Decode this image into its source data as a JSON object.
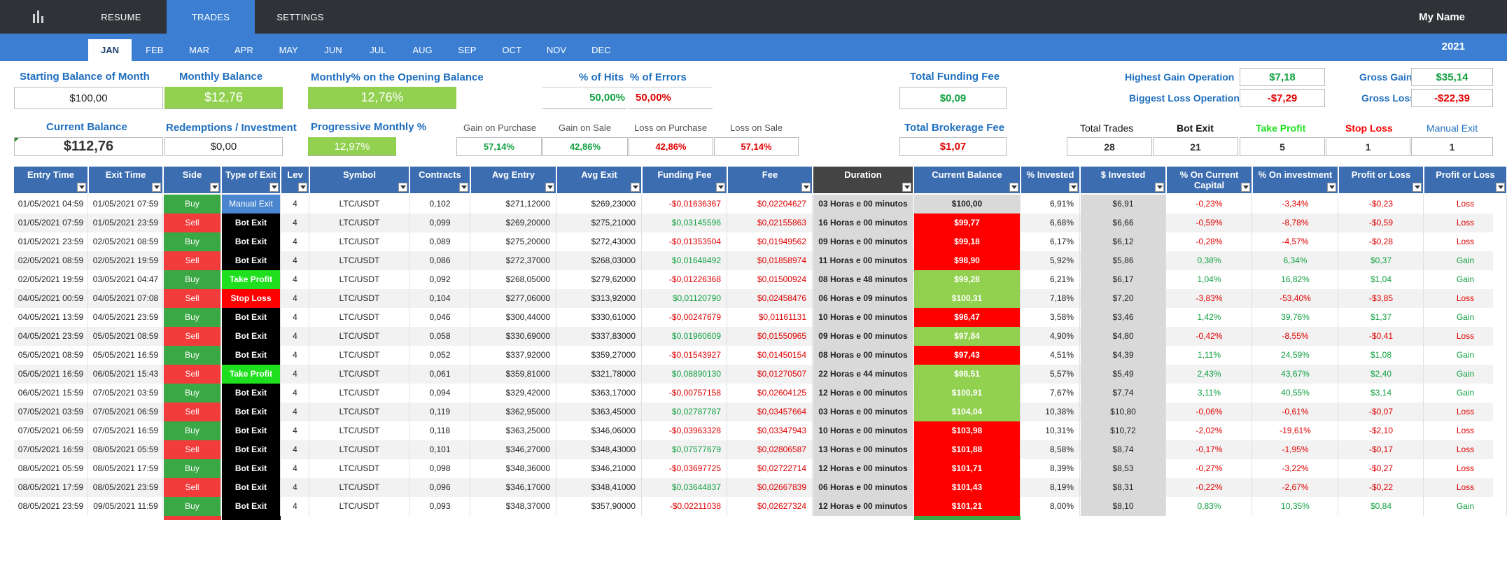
{
  "nav": {
    "resume": "RESUME",
    "trades": "TRADES",
    "settings": "SETTINGS",
    "user": "My Name"
  },
  "months": [
    "JAN",
    "FEB",
    "MAR",
    "APR",
    "MAY",
    "JUN",
    "JUL",
    "AUG",
    "SEP",
    "OCT",
    "NOV",
    "DEC"
  ],
  "active_month": "JAN",
  "year": "2021",
  "summary": {
    "starting_balance_label": "Starting Balance of Month",
    "starting_balance": "$100,00",
    "monthly_balance_label": "Monthly Balance",
    "monthly_balance": "$12,76",
    "monthly_pct_label": "Monthly% on the Opening Balance",
    "monthly_pct": "12,76%",
    "hits_label": "% of Hits",
    "hits": "50,00%",
    "errors_label": "% of Errors",
    "errors": "50,00%",
    "funding_label": "Total Funding Fee",
    "funding": "$0,09",
    "highest_gain_label": "Highest Gain Operation",
    "highest_gain": "$7,18",
    "biggest_loss_label": "Biggest Loss Operation",
    "biggest_loss": "-$7,29",
    "gross_gain_label": "Gross Gain",
    "gross_gain": "$35,14",
    "gross_loss_label": "Gross Loss",
    "gross_loss": "-$22,39",
    "current_balance_label": "Current Balance",
    "current_balance": "$112,76",
    "redemptions_label": "Redemptions / Investment",
    "redemptions": "$0,00",
    "progressive_label": "Progressive Monthly %",
    "progressive": "12,97%",
    "gain_purchase_label": "Gain on Purchase",
    "gain_purchase": "57,14%",
    "gain_sale_label": "Gain on Sale",
    "gain_sale": "42,86%",
    "loss_purchase_label": "Loss on Purchase",
    "loss_purchase": "42,86%",
    "loss_sale_label": "Loss on Sale",
    "loss_sale": "57,14%",
    "brokerage_label": "Total Brokerage Fee",
    "brokerage": "$1,07",
    "total_trades_label": "Total Trades",
    "total_trades": "28",
    "bot_exit_label": "Bot Exit",
    "bot_exit": "21",
    "take_profit_label": "Take Profit",
    "take_profit": "5",
    "stop_loss_label": "Stop Loss",
    "stop_loss": "1",
    "manual_exit_label": "Manual Exit",
    "manual_exit": "1"
  },
  "table": {
    "headers": [
      "Entry Time",
      "Exit Time",
      "Side",
      "Type of Exit",
      "Lev",
      "Symbol",
      "Contracts",
      "Avg Entry",
      "Avg Exit",
      "Funding Fee",
      "Fee",
      "Duration",
      "Current Balance",
      "% Invested",
      "$ Invested",
      "% On Current Capital",
      "% On investment",
      "Profit or Loss",
      "Profit or Loss"
    ],
    "rows": [
      [
        "01/05/2021 04:59",
        "01/05/2021 07:59",
        "Buy",
        "Manual Exit",
        "4",
        "LTC/USDT",
        "0,102",
        "$271,12000",
        "$269,23000",
        "-$0,01636367",
        "$0,02204627",
        "03 Horas e 00 minutos",
        "$100,00",
        "6,91%",
        "$6,91",
        "-0,23%",
        "-3,34%",
        "-$0,23",
        "Loss"
      ],
      [
        "01/05/2021 07:59",
        "01/05/2021 23:59",
        "Sell",
        "Bot Exit",
        "4",
        "LTC/USDT",
        "0,099",
        "$269,20000",
        "$275,21000",
        "$0,03145596",
        "$0,02155863",
        "16 Horas e 00 minutos",
        "$99,77",
        "6,68%",
        "$6,66",
        "-0,59%",
        "-8,78%",
        "-$0,59",
        "Loss"
      ],
      [
        "01/05/2021 23:59",
        "02/05/2021 08:59",
        "Buy",
        "Bot Exit",
        "4",
        "LTC/USDT",
        "0,089",
        "$275,20000",
        "$272,43000",
        "-$0,01353504",
        "$0,01949562",
        "09 Horas e 00 minutos",
        "$99,18",
        "6,17%",
        "$6,12",
        "-0,28%",
        "-4,57%",
        "-$0,28",
        "Loss"
      ],
      [
        "02/05/2021 08:59",
        "02/05/2021 19:59",
        "Sell",
        "Bot Exit",
        "4",
        "LTC/USDT",
        "0,086",
        "$272,37000",
        "$268,03000",
        "$0,01648492",
        "$0,01858974",
        "11 Horas e 00 minutos",
        "$98,90",
        "5,92%",
        "$5,86",
        "0,38%",
        "6,34%",
        "$0,37",
        "Gain"
      ],
      [
        "02/05/2021 19:59",
        "03/05/2021 04:47",
        "Buy",
        "Take Profit",
        "4",
        "LTC/USDT",
        "0,092",
        "$268,05000",
        "$279,62000",
        "-$0,01226368",
        "$0,01500924",
        "08 Horas e 48 minutos",
        "$99,28",
        "6,21%",
        "$6,17",
        "1,04%",
        "16,82%",
        "$1,04",
        "Gain"
      ],
      [
        "04/05/2021 00:59",
        "04/05/2021 07:08",
        "Sell",
        "Stop Loss",
        "4",
        "LTC/USDT",
        "0,104",
        "$277,06000",
        "$313,92000",
        "$0,01120790",
        "$0,02458476",
        "06 Horas e 09 minutos",
        "$100,31",
        "7,18%",
        "$7,20",
        "-3,83%",
        "-53,40%",
        "-$3,85",
        "Loss"
      ],
      [
        "04/05/2021 13:59",
        "04/05/2021 23:59",
        "Buy",
        "Bot Exit",
        "4",
        "LTC/USDT",
        "0,046",
        "$300,44000",
        "$330,61000",
        "-$0,00247679",
        "$0,01161131",
        "10 Horas e 00 minutos",
        "$96,47",
        "3,58%",
        "$3,46",
        "1,42%",
        "39,76%",
        "$1,37",
        "Gain"
      ],
      [
        "04/05/2021 23:59",
        "05/05/2021 08:59",
        "Sell",
        "Bot Exit",
        "4",
        "LTC/USDT",
        "0,058",
        "$330,69000",
        "$337,83000",
        "$0,01960609",
        "$0,01550965",
        "09 Horas e 00 minutos",
        "$97,84",
        "4,90%",
        "$4,80",
        "-0,42%",
        "-8,55%",
        "-$0,41",
        "Loss"
      ],
      [
        "05/05/2021 08:59",
        "05/05/2021 16:59",
        "Buy",
        "Bot Exit",
        "4",
        "LTC/USDT",
        "0,052",
        "$337,92000",
        "$359,27000",
        "-$0,01543927",
        "$0,01450154",
        "08 Horas e 00 minutos",
        "$97,43",
        "4,51%",
        "$4,39",
        "1,11%",
        "24,59%",
        "$1,08",
        "Gain"
      ],
      [
        "05/05/2021 16:59",
        "06/05/2021 15:43",
        "Sell",
        "Take Profit",
        "4",
        "LTC/USDT",
        "0,061",
        "$359,81000",
        "$321,78000",
        "$0,08890130",
        "$0,01270507",
        "22 Horas e 44 minutos",
        "$98,51",
        "5,57%",
        "$5,49",
        "2,43%",
        "43,67%",
        "$2,40",
        "Gain"
      ],
      [
        "06/05/2021 15:59",
        "07/05/2021 03:59",
        "Buy",
        "Bot Exit",
        "4",
        "LTC/USDT",
        "0,094",
        "$329,42000",
        "$363,17000",
        "-$0,00757158",
        "$0,02604125",
        "12 Horas e 00 minutos",
        "$100,91",
        "7,67%",
        "$7,74",
        "3,11%",
        "40,55%",
        "$3,14",
        "Gain"
      ],
      [
        "07/05/2021 03:59",
        "07/05/2021 06:59",
        "Sell",
        "Bot Exit",
        "4",
        "LTC/USDT",
        "0,119",
        "$362,95000",
        "$363,45000",
        "$0,02787787",
        "$0,03457664",
        "03 Horas e 00 minutos",
        "$104,04",
        "10,38%",
        "$10,80",
        "-0,06%",
        "-0,61%",
        "-$0,07",
        "Loss"
      ],
      [
        "07/05/2021 06:59",
        "07/05/2021 16:59",
        "Buy",
        "Bot Exit",
        "4",
        "LTC/USDT",
        "0,118",
        "$363,25000",
        "$346,06000",
        "-$0,03963328",
        "$0,03347943",
        "10 Horas e 00 minutos",
        "$103,98",
        "10,31%",
        "$10,72",
        "-2,02%",
        "-19,61%",
        "-$2,10",
        "Loss"
      ],
      [
        "07/05/2021 16:59",
        "08/05/2021 05:59",
        "Sell",
        "Bot Exit",
        "4",
        "LTC/USDT",
        "0,101",
        "$346,27000",
        "$348,43000",
        "$0,07577679",
        "$0,02806587",
        "13 Horas e 00 minutos",
        "$101,88",
        "8,58%",
        "$8,74",
        "-0,17%",
        "-1,95%",
        "-$0,17",
        "Loss"
      ],
      [
        "08/05/2021 05:59",
        "08/05/2021 17:59",
        "Buy",
        "Bot Exit",
        "4",
        "LTC/USDT",
        "0,098",
        "$348,36000",
        "$346,21000",
        "-$0,03697725",
        "$0,02722714",
        "12 Horas e 00 minutos",
        "$101,71",
        "8,39%",
        "$8,53",
        "-0,27%",
        "-3,22%",
        "-$0,27",
        "Loss"
      ],
      [
        "08/05/2021 17:59",
        "08/05/2021 23:59",
        "Sell",
        "Bot Exit",
        "4",
        "LTC/USDT",
        "0,096",
        "$346,17000",
        "$348,41000",
        "$0,03644837",
        "$0,02667839",
        "06 Horas e 00 minutos",
        "$101,43",
        "8,19%",
        "$8,31",
        "-0,22%",
        "-2,67%",
        "-$0,22",
        "Loss"
      ],
      [
        "08/05/2021 23:59",
        "09/05/2021 11:59",
        "Buy",
        "Bot Exit",
        "4",
        "LTC/USDT",
        "0,093",
        "$348,37000",
        "$357,90000",
        "-$0,02211038",
        "$0,02627324",
        "12 Horas e 00 minutos",
        "$101,21",
        "8,00%",
        "$8,10",
        "0,83%",
        "10,35%",
        "$0,84",
        "Gain"
      ]
    ]
  },
  "colors": {
    "topbar": "#2f3337",
    "accent": "#3c7fd2",
    "header": "#3b6db0",
    "buy": "#3aa845",
    "sell": "#f23c3c",
    "gain": "#10a040",
    "loss": "#e00000"
  }
}
